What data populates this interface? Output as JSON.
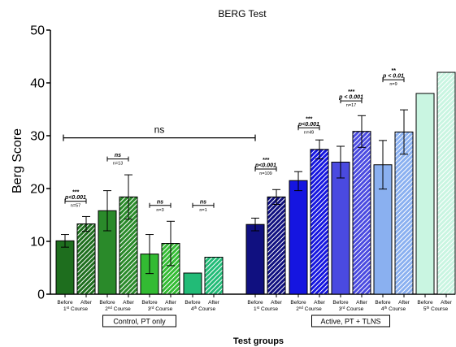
{
  "chart_data": {
    "type": "bar",
    "title": "BERG Test",
    "xlabel": "Test groups",
    "ylabel": "Berg Score",
    "ylim": [
      0,
      50
    ],
    "yticks": [
      "0",
      "10",
      "20",
      "30",
      "40",
      "50"
    ],
    "grid": false,
    "groups": [
      {
        "label": "Control, PT only",
        "pairs": [
          0,
          1,
          2,
          3
        ]
      },
      {
        "label": "Active, PT + TLNS",
        "pairs": [
          4,
          5,
          6,
          7,
          8
        ]
      }
    ],
    "bars": [
      {
        "when": "Before",
        "course": "1",
        "sup": "st",
        "rest": " Course",
        "value": 10.1,
        "lo": 8.9,
        "hi": 11.3,
        "color": "#1e6e1e",
        "hatch": false
      },
      {
        "when": "After",
        "course": "1",
        "sup": "st",
        "rest": " Course",
        "value": 13.3,
        "lo": 11.9,
        "hi": 14.7,
        "color": "#1e6e1e",
        "hatch": true
      },
      {
        "when": "Before",
        "course": "2",
        "sup": "nd",
        "rest": " Course",
        "value": 15.8,
        "lo": 12.0,
        "hi": 19.6,
        "color": "#2a8a2a",
        "hatch": false
      },
      {
        "when": "After",
        "course": "2",
        "sup": "nd",
        "rest": " Course",
        "value": 18.4,
        "lo": 14.2,
        "hi": 22.6,
        "color": "#2a8a2a",
        "hatch": true
      },
      {
        "when": "Before",
        "course": "3",
        "sup": "rd",
        "rest": " Course",
        "value": 7.6,
        "lo": 3.9,
        "hi": 11.3,
        "color": "#33bb33",
        "hatch": false
      },
      {
        "when": "After",
        "course": "3",
        "sup": "rd",
        "rest": " Course",
        "value": 9.6,
        "lo": 5.4,
        "hi": 13.8,
        "color": "#33bb33",
        "hatch": true
      },
      {
        "when": "Before",
        "course": "4",
        "sup": "th",
        "rest": " Course",
        "value": 4.0,
        "lo": null,
        "hi": null,
        "color": "#22bb77",
        "hatch": false
      },
      {
        "when": "After",
        "course": "4",
        "sup": "th",
        "rest": " Course",
        "value": 7.0,
        "lo": null,
        "hi": null,
        "color": "#22bb77",
        "hatch": true
      },
      {
        "when": "Before",
        "course": "1",
        "sup": "st",
        "rest": " Course",
        "value": 13.2,
        "lo": 12.0,
        "hi": 14.4,
        "color": "#101080",
        "hatch": false
      },
      {
        "when": "After",
        "course": "1",
        "sup": "st",
        "rest": " Course",
        "value": 18.4,
        "lo": 17.0,
        "hi": 19.8,
        "color": "#101080",
        "hatch": true
      },
      {
        "when": "Before",
        "course": "2",
        "sup": "nd",
        "rest": " Course",
        "value": 21.5,
        "lo": 19.6,
        "hi": 23.2,
        "color": "#1515e0",
        "hatch": false
      },
      {
        "when": "After",
        "course": "2",
        "sup": "nd",
        "rest": " Course",
        "value": 27.4,
        "lo": 25.6,
        "hi": 29.2,
        "color": "#1515e0",
        "hatch": true
      },
      {
        "when": "Before",
        "course": "3",
        "sup": "rd",
        "rest": " Course",
        "value": 25.0,
        "lo": 22.0,
        "hi": 28.0,
        "color": "#4a4ae0",
        "hatch": false
      },
      {
        "when": "After",
        "course": "3",
        "sup": "rd",
        "rest": " Course",
        "value": 30.8,
        "lo": 27.8,
        "hi": 33.8,
        "color": "#4a4ae0",
        "hatch": true
      },
      {
        "when": "Before",
        "course": "4",
        "sup": "th",
        "rest": " Course",
        "value": 24.5,
        "lo": 19.9,
        "hi": 29.1,
        "color": "#8ab0f0",
        "hatch": false
      },
      {
        "when": "After",
        "course": "4",
        "sup": "th",
        "rest": " Course",
        "value": 30.7,
        "lo": 26.5,
        "hi": 34.9,
        "color": "#8ab0f0",
        "hatch": true
      },
      {
        "when": "Before",
        "course": "5",
        "sup": "th",
        "rest": " Course",
        "value": 38.0,
        "lo": null,
        "hi": null,
        "color": "#c9f5e1",
        "hatch": false
      },
      {
        "when": "After",
        "course": "5",
        "sup": "th",
        "rest": " Course",
        "value": 42.0,
        "lo": null,
        "hi": null,
        "color": "#c9f5e1",
        "hatch": true
      }
    ],
    "comparisons": [
      {
        "pair": 0,
        "stars": "***",
        "p": "p<0.001",
        "n": "n=57",
        "y": 17.6
      },
      {
        "pair": 1,
        "stars": "",
        "p": "ns",
        "n": "n=13",
        "y": 25.6
      },
      {
        "pair": 2,
        "stars": "",
        "p": "ns",
        "n": "n=3",
        "y": 16.8
      },
      {
        "pair": 3,
        "stars": "",
        "p": "ns",
        "n": "n=1",
        "y": 16.8
      },
      {
        "pair": 4,
        "stars": "***",
        "p": "p<0.001",
        "n": "n=109",
        "y": 23.7
      },
      {
        "pair": 5,
        "stars": "***",
        "p": "p<0.001",
        "n": "n=49",
        "y": 31.5
      },
      {
        "pair": 6,
        "stars": "***",
        "p": "p < 0.001",
        "n": "n=17",
        "y": 36.6
      },
      {
        "pair": 7,
        "stars": "**",
        "p": "p < 0.01",
        "n": "n=9",
        "y": 40.6
      }
    ],
    "group_comparison": {
      "label": "ns",
      "y": 29.6
    }
  }
}
